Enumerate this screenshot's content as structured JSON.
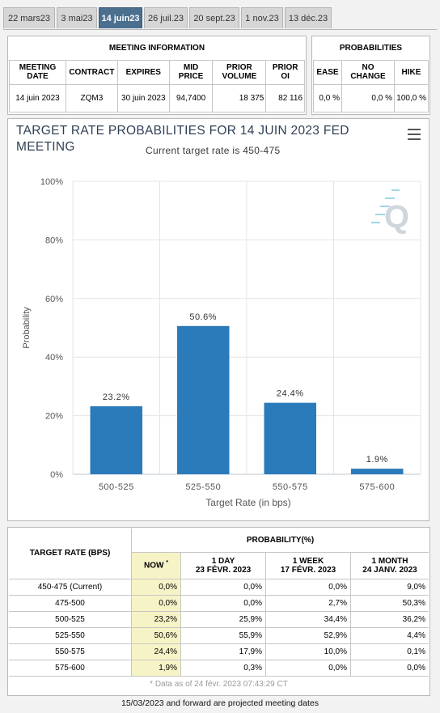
{
  "tabs": [
    "22 mars23",
    "3 mai23",
    "14 juin23",
    "26 juil.23",
    "20 sept.23",
    "1 nov.23",
    "13 déc.23"
  ],
  "active_tab": "14 juin23",
  "meeting": {
    "section_title": "MEETING INFORMATION",
    "headers": [
      "MEETING DATE",
      "CONTRACT",
      "EXPIRES",
      "MID PRICE",
      "PRIOR VOLUME",
      "PRIOR OI"
    ],
    "values": [
      "14 juin 2023",
      "ZQM3",
      "30 juin 2023",
      "94,7400",
      "18 375",
      "82 116"
    ]
  },
  "probabilities": {
    "section_title": "PROBABILITIES",
    "headers": [
      "EASE",
      "NO CHANGE",
      "HIKE"
    ],
    "values": [
      "0,0 %",
      "0,0 %",
      "100,0 %"
    ]
  },
  "menu_icon": "hamburger-icon",
  "chart_data": {
    "type": "bar",
    "title": "TARGET RATE PROBABILITIES FOR 14 JUIN 2023 FED MEETING",
    "subtitle": "Current target rate is 450-475",
    "xlabel": "Target Rate (in bps)",
    "ylabel": "Probability",
    "categories": [
      "500-525",
      "525-550",
      "550-575",
      "575-600"
    ],
    "values": [
      23.2,
      50.6,
      24.4,
      1.9
    ],
    "data_labels": [
      "23.2%",
      "50.6%",
      "24.4%",
      "1.9%"
    ],
    "yticks": [
      "0%",
      "20%",
      "40%",
      "60%",
      "80%",
      "100%"
    ],
    "ylim": [
      0,
      100
    ],
    "bar_color": "#2b7bba",
    "grid": true
  },
  "table": {
    "col_target": "TARGET RATE (BPS)",
    "col_prob": "PROBABILITY(%)",
    "subcols": [
      {
        "line1": "NOW",
        "line2": ""
      },
      {
        "line1": "1 DAY",
        "line2": "23 FÉVR. 2023"
      },
      {
        "line1": "1 WEEK",
        "line2": "17 FÉVR. 2023"
      },
      {
        "line1": "1 MONTH",
        "line2": "24 JANV. 2023"
      }
    ],
    "now_marker": "*",
    "rows": [
      {
        "rate": "450-475 (Current)",
        "vals": [
          "0,0%",
          "0,0%",
          "0,0%",
          "9,0%"
        ]
      },
      {
        "rate": "475-500",
        "vals": [
          "0,0%",
          "0,0%",
          "2,7%",
          "50,3%"
        ]
      },
      {
        "rate": "500-525",
        "vals": [
          "23,2%",
          "25,9%",
          "34,4%",
          "36,2%"
        ]
      },
      {
        "rate": "525-550",
        "vals": [
          "50,6%",
          "55,9%",
          "52,9%",
          "4,4%"
        ]
      },
      {
        "rate": "550-575",
        "vals": [
          "24,4%",
          "17,9%",
          "10,0%",
          "0,1%"
        ]
      },
      {
        "rate": "575-600",
        "vals": [
          "1,9%",
          "0,3%",
          "0,0%",
          "0,0%"
        ]
      }
    ],
    "note": "* Data as of 24 févr. 2023 07:43:29 CT"
  },
  "footer": "15/03/2023 and forward are projected meeting dates"
}
